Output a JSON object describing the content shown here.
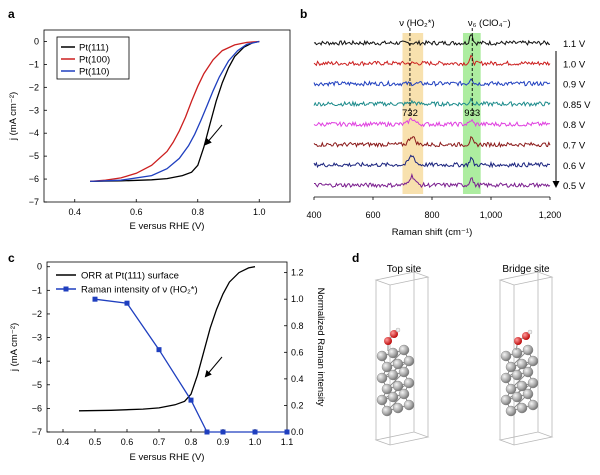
{
  "panels": {
    "a": {
      "label": "a"
    },
    "b": {
      "label": "b"
    },
    "c": {
      "label": "c"
    },
    "d": {
      "label": "d",
      "top_site": "Top site",
      "bridge_site": "Bridge site"
    }
  },
  "chart_data": [
    {
      "panel": "a",
      "type": "line",
      "xlabel": "E versus RHE (V)",
      "ylabel": "j (mA cm⁻²)",
      "xlim": [
        0.3,
        1.1
      ],
      "ylim": [
        -7,
        0.5
      ],
      "xticks": [
        0.4,
        0.6,
        0.8,
        1.0
      ],
      "xtick_labels": [
        "0.4",
        "0.6",
        "0.8",
        "1.0"
      ],
      "yticks": [
        0,
        -1,
        -2,
        -3,
        -4,
        -5,
        -6,
        -7
      ],
      "ytick_labels": [
        "0",
        "−1",
        "−2",
        "−3",
        "−4",
        "−5",
        "−6",
        "−7"
      ],
      "legend_position": "top-left",
      "annotation_arrow": "decreasing potential",
      "series": [
        {
          "name": "Pt(111)",
          "color": "#000000",
          "x": [
            0.45,
            0.55,
            0.65,
            0.7,
            0.75,
            0.78,
            0.8,
            0.82,
            0.84,
            0.86,
            0.88,
            0.9,
            0.92,
            0.95,
            0.98,
            1.0
          ],
          "y": [
            -6.1,
            -6.08,
            -6.03,
            -5.98,
            -5.85,
            -5.7,
            -5.4,
            -4.6,
            -3.6,
            -2.6,
            -1.8,
            -1.15,
            -0.65,
            -0.25,
            -0.05,
            0.0
          ]
        },
        {
          "name": "Pt(100)",
          "color": "#cc1f1f",
          "x": [
            0.45,
            0.5,
            0.55,
            0.6,
            0.65,
            0.7,
            0.72,
            0.74,
            0.76,
            0.78,
            0.8,
            0.82,
            0.85,
            0.88,
            0.92,
            0.96,
            1.0
          ],
          "y": [
            -6.1,
            -6.05,
            -5.95,
            -5.75,
            -5.4,
            -4.8,
            -4.4,
            -3.9,
            -3.3,
            -2.6,
            -1.95,
            -1.4,
            -0.8,
            -0.4,
            -0.15,
            -0.04,
            0.0
          ]
        },
        {
          "name": "Pt(110)",
          "color": "#1f3fbf",
          "x": [
            0.45,
            0.55,
            0.65,
            0.7,
            0.74,
            0.77,
            0.79,
            0.81,
            0.83,
            0.85,
            0.87,
            0.9,
            0.93,
            0.96,
            1.0
          ],
          "y": [
            -6.1,
            -6.05,
            -5.85,
            -5.55,
            -5.1,
            -4.55,
            -4.05,
            -3.45,
            -2.8,
            -2.15,
            -1.55,
            -0.85,
            -0.4,
            -0.12,
            0.0
          ]
        }
      ]
    },
    {
      "panel": "b",
      "type": "line",
      "xlabel": "Raman shift (cm⁻¹)",
      "xlim": [
        400,
        1200
      ],
      "xticks": [
        400,
        600,
        800,
        1000,
        1200
      ],
      "xtick_labels": [
        "400",
        "600",
        "800",
        "1,000",
        "1,200"
      ],
      "peak_labels": [
        {
          "text": "ν (HO₂*)",
          "x": 732
        },
        {
          "text": "ν₆ (ClO₄⁻)",
          "x": 933
        }
      ],
      "band_labels": [
        {
          "text": "732",
          "x": 732
        },
        {
          "text": "933",
          "x": 933
        }
      ],
      "highlight_bands": [
        {
          "from": 700,
          "to": 770,
          "color": "#f7dca0"
        },
        {
          "from": 905,
          "to": 965,
          "color": "#9fea8f"
        }
      ],
      "annotation_arrow": "decreasing potential",
      "series": [
        {
          "name": "1.1 V",
          "color": "#111111",
          "peak_732": 0.0,
          "peak_933": 1.0
        },
        {
          "name": "1.0 V",
          "color": "#cc1f1f",
          "peak_732": 0.0,
          "peak_933": 0.6
        },
        {
          "name": "0.9 V",
          "color": "#1f3fbf",
          "peak_732": 0.0,
          "peak_933": 0.6
        },
        {
          "name": "0.85 V",
          "color": "#1a8a8a",
          "peak_732": 0.2,
          "peak_933": 0.5
        },
        {
          "name": "0.8 V",
          "color": "#e040e0",
          "peak_732": 0.6,
          "peak_933": 0.4
        },
        {
          "name": "0.7 V",
          "color": "#8b1a1a",
          "peak_732": 0.9,
          "peak_933": 0.6
        },
        {
          "name": "0.6 V",
          "color": "#1a237e",
          "peak_732": 1.0,
          "peak_933": 0.7
        },
        {
          "name": "0.5 V",
          "color": "#7b1f8f",
          "peak_732": 1.0,
          "peak_933": 0.8
        }
      ]
    },
    {
      "panel": "c",
      "type": "line",
      "xlabel": "E versus RHE (V)",
      "ylabel": "j (mA cm⁻²)",
      "ylabel_right": "Normalized Raman intensity",
      "xlim": [
        0.35,
        1.1
      ],
      "ylim": [
        -7,
        0.2
      ],
      "ylim_right": [
        0,
        1.28
      ],
      "xticks": [
        0.4,
        0.5,
        0.6,
        0.7,
        0.8,
        0.9,
        1.0,
        1.1
      ],
      "xtick_labels": [
        "0.4",
        "0.5",
        "0.6",
        "0.7",
        "0.8",
        "0.9",
        "1.0",
        "1.1"
      ],
      "yticks": [
        0,
        -1,
        -2,
        -3,
        -4,
        -5,
        -6,
        -7
      ],
      "ytick_labels": [
        "0",
        "−1",
        "−2",
        "−3",
        "−4",
        "−5",
        "−6",
        "−7"
      ],
      "yticks_right": [
        0.0,
        0.2,
        0.4,
        0.6,
        0.8,
        1.0,
        1.2
      ],
      "ytick_labels_right": [
        "0.0",
        "0.2",
        "0.4",
        "0.6",
        "0.8",
        "1.0",
        "1.2"
      ],
      "legend_position": "top-left",
      "annotation_arrow": "decreasing potential",
      "series": [
        {
          "name": "ORR at Pt(111) surface",
          "color": "#000000",
          "axis": "left",
          "x": [
            0.45,
            0.55,
            0.65,
            0.7,
            0.75,
            0.78,
            0.8,
            0.82,
            0.84,
            0.86,
            0.88,
            0.9,
            0.92,
            0.95,
            0.98,
            1.0
          ],
          "y": [
            -6.1,
            -6.08,
            -6.03,
            -5.98,
            -5.85,
            -5.7,
            -5.4,
            -4.6,
            -3.6,
            -2.6,
            -1.8,
            -1.15,
            -0.65,
            -0.25,
            -0.05,
            0.0
          ]
        },
        {
          "name": "Raman intensity of ν (HO₂*)",
          "color": "#1f3fbf",
          "axis": "right",
          "marker": "square",
          "x": [
            0.5,
            0.6,
            0.7,
            0.8,
            0.85,
            0.9,
            1.0,
            1.1
          ],
          "y": [
            1.0,
            0.97,
            0.62,
            0.24,
            0.0,
            0.0,
            0.0,
            0.0
          ]
        }
      ]
    }
  ]
}
